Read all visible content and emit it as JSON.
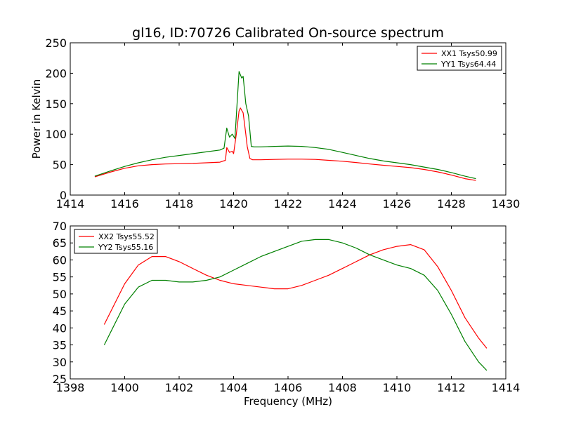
{
  "title": "gl16, ID:70726 Calibrated On-source spectrum",
  "chart_data": [
    {
      "type": "line",
      "ylabel": "Power in Kelvin",
      "xlabel": "",
      "xlim": [
        1414,
        1430
      ],
      "ylim": [
        0,
        250
      ],
      "xticks": [
        1414,
        1416,
        1418,
        1420,
        1422,
        1424,
        1426,
        1428,
        1430
      ],
      "yticks": [
        0,
        50,
        100,
        150,
        200,
        250
      ],
      "legend_position": "top-right",
      "grid": false,
      "series": [
        {
          "name": "XX1 Tsys50.99",
          "color": "#ff0000",
          "x": [
            1414.9,
            1415.5,
            1416.0,
            1416.5,
            1417.0,
            1417.5,
            1418.0,
            1418.5,
            1419.0,
            1419.5,
            1419.7,
            1419.75,
            1419.85,
            1419.95,
            1420.0,
            1420.1,
            1420.2,
            1420.25,
            1420.35,
            1420.45,
            1420.5,
            1420.6,
            1420.7,
            1421.0,
            1421.5,
            1422.0,
            1422.5,
            1423.0,
            1423.5,
            1424.0,
            1424.5,
            1425.0,
            1425.5,
            1426.0,
            1426.5,
            1427.0,
            1427.5,
            1428.0,
            1428.5,
            1428.9
          ],
          "y": [
            30,
            38,
            44,
            48,
            50,
            51,
            51.5,
            52,
            53,
            54,
            57,
            78,
            70,
            72,
            68,
            100,
            138,
            143,
            135,
            100,
            80,
            60,
            58,
            58,
            58.5,
            59,
            59,
            58.5,
            57,
            55.5,
            53.5,
            51,
            49,
            47,
            45,
            42,
            38,
            33,
            27,
            24
          ]
        },
        {
          "name": "YY1 Tsys64.44",
          "color": "#008000",
          "x": [
            1414.9,
            1415.5,
            1416.0,
            1416.5,
            1417.0,
            1417.5,
            1418.0,
            1418.5,
            1419.0,
            1419.5,
            1419.65,
            1419.75,
            1419.85,
            1419.95,
            1420.05,
            1420.1,
            1420.2,
            1420.3,
            1420.35,
            1420.45,
            1420.55,
            1420.65,
            1420.75,
            1421.0,
            1421.5,
            1422.0,
            1422.5,
            1423.0,
            1423.5,
            1424.0,
            1424.5,
            1425.0,
            1425.5,
            1426.0,
            1426.5,
            1427.0,
            1427.5,
            1428.0,
            1428.5,
            1428.9
          ],
          "y": [
            31,
            40,
            47,
            53,
            58,
            62,
            65,
            68,
            71,
            74,
            77,
            110,
            95,
            100,
            93,
            130,
            203,
            192,
            195,
            150,
            130,
            80,
            79,
            79,
            80,
            80.5,
            80,
            78,
            75,
            70,
            65,
            60,
            56,
            53,
            50,
            46,
            42,
            37,
            31,
            27
          ]
        }
      ]
    },
    {
      "type": "line",
      "ylabel": "",
      "xlabel": "Frequency (MHz)",
      "xlim": [
        1398,
        1414
      ],
      "ylim": [
        25,
        70
      ],
      "xticks": [
        1398,
        1400,
        1402,
        1404,
        1406,
        1408,
        1410,
        1412,
        1414
      ],
      "yticks": [
        25,
        30,
        35,
        40,
        45,
        50,
        55,
        60,
        65,
        70
      ],
      "legend_position": "top-left",
      "grid": false,
      "series": [
        {
          "name": "XX2 Tsys55.52",
          "color": "#ff0000",
          "x": [
            1399.25,
            1399.5,
            1400.0,
            1400.5,
            1401.0,
            1401.5,
            1402.0,
            1402.5,
            1403.0,
            1403.5,
            1404.0,
            1404.5,
            1405.0,
            1405.5,
            1406.0,
            1406.5,
            1407.0,
            1407.5,
            1408.0,
            1408.5,
            1409.0,
            1409.5,
            1410.0,
            1410.5,
            1411.0,
            1411.5,
            1412.0,
            1412.5,
            1413.0,
            1413.3
          ],
          "y": [
            41,
            45,
            53,
            58.5,
            61,
            61,
            59.5,
            57.5,
            55.5,
            54,
            53,
            52.5,
            52,
            51.5,
            51.5,
            52.5,
            54,
            55.5,
            57.5,
            59.5,
            61.5,
            63,
            64,
            64.5,
            63,
            58,
            51,
            43,
            37,
            34
          ]
        },
        {
          "name": "YY2 Tsys55.16",
          "color": "#008000",
          "x": [
            1399.25,
            1399.5,
            1400.0,
            1400.5,
            1401.0,
            1401.5,
            1402.0,
            1402.5,
            1403.0,
            1403.5,
            1404.0,
            1404.5,
            1405.0,
            1405.5,
            1406.0,
            1406.5,
            1407.0,
            1407.5,
            1408.0,
            1408.5,
            1409.0,
            1409.5,
            1410.0,
            1410.5,
            1411.0,
            1411.5,
            1412.0,
            1412.5,
            1413.0,
            1413.3
          ],
          "y": [
            35,
            39,
            47,
            52,
            54,
            54,
            53.5,
            53.5,
            54,
            55,
            57,
            59,
            61,
            62.5,
            64,
            65.5,
            66,
            66,
            65,
            63.5,
            61.5,
            60,
            58.5,
            57.5,
            55.5,
            51,
            44,
            36,
            30,
            27.5
          ]
        }
      ]
    }
  ]
}
